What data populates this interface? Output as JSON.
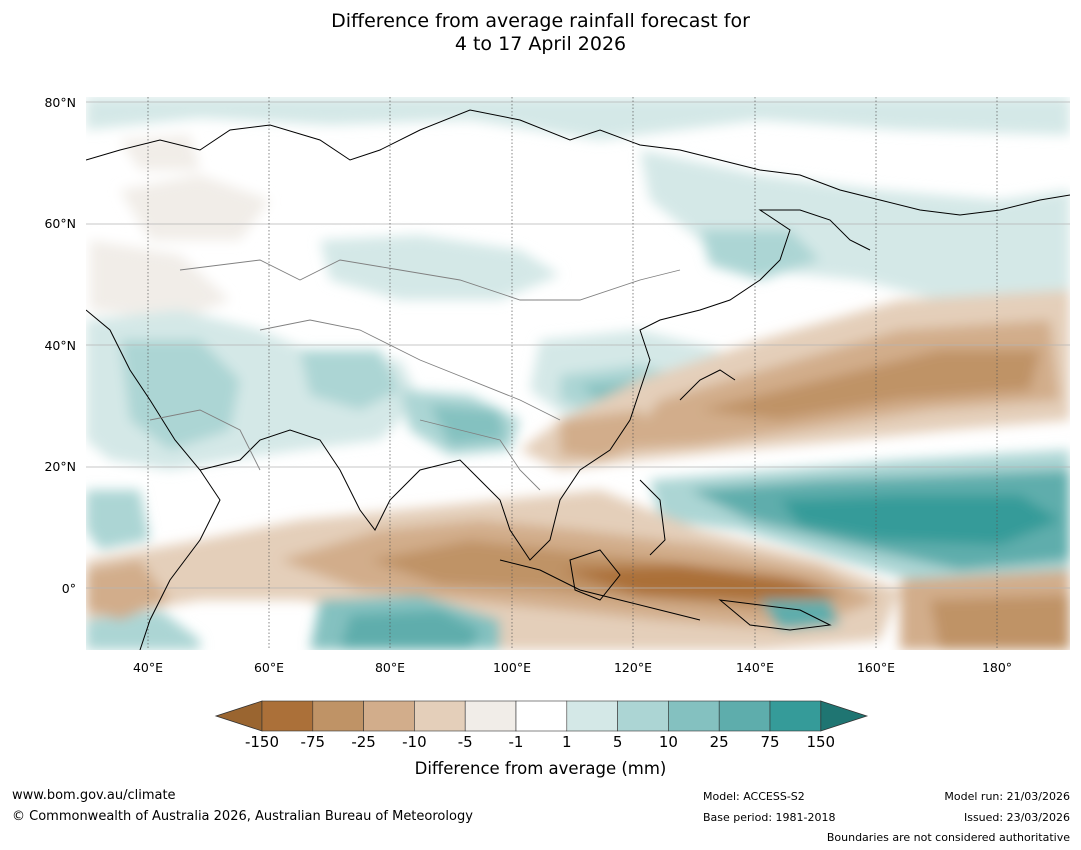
{
  "title_line1": "Difference from average rainfall forecast for",
  "title_line2": "4 to 17 April 2026",
  "latitude_labels": [
    "80°N",
    "60°N",
    "40°N",
    "20°N",
    "0°"
  ],
  "longitude_labels": [
    "40°E",
    "60°E",
    "80°E",
    "100°E",
    "120°E",
    "140°E",
    "160°E",
    "180°"
  ],
  "colorbar": {
    "title": "Difference from average (mm)",
    "tick_labels": [
      "-150",
      "-75",
      "-25",
      "-10",
      "-5",
      "-1",
      "1",
      "5",
      "10",
      "25",
      "75",
      "150"
    ],
    "colors": [
      "#9a6530",
      "#ab7039",
      "#bf9366",
      "#d2ad8b",
      "#e4cfba",
      "#f1ede8",
      "#ffffff",
      "#d4e8e7",
      "#acd5d4",
      "#84c1c0",
      "#5eadac",
      "#359b99",
      "#1f7572"
    ]
  },
  "footer": {
    "website": "www.bom.gov.au/climate",
    "copyright": "© Commonwealth of Australia 2026, Australian Bureau of Meteorology",
    "model": "Model: ACCESS-S2",
    "base_period": "Base period: 1981-2018",
    "model_run": "Model run: 21/03/2026",
    "issued": "Issued: 23/03/2026",
    "disclaimer": "Boundaries are not considered authoritative"
  }
}
